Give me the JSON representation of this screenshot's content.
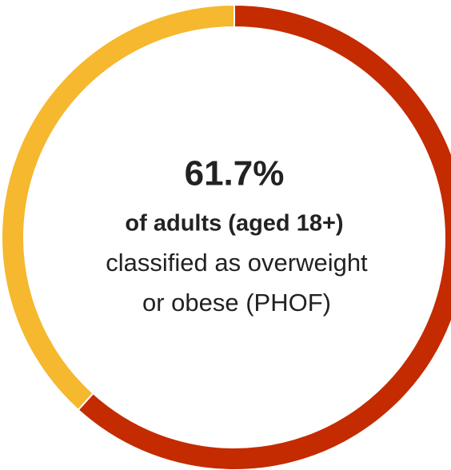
{
  "chart_data": {
    "type": "pie",
    "donut": true,
    "categories": [
      null,
      null
    ],
    "values": [
      61.7,
      38.3
    ],
    "value_labels": [
      "61.7%",
      null
    ],
    "colors": [
      "#c42b00",
      "#f5b82e"
    ],
    "annotations": [
      "of adults (aged 18+)",
      "classified as overweight",
      "or obese (PHOF)"
    ]
  }
}
